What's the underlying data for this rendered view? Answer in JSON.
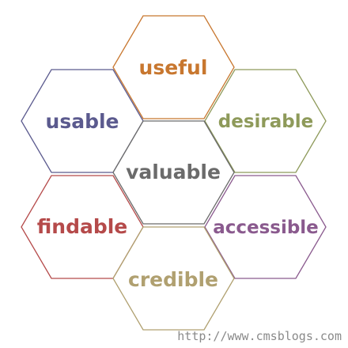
{
  "diagram": {
    "hexagons": [
      {
        "id": "useful",
        "label": "useful",
        "color": "#c8772f"
      },
      {
        "id": "usable",
        "label": "usable",
        "color": "#5b5a8e"
      },
      {
        "id": "desirable",
        "label": "desirable",
        "color": "#8e9a5a"
      },
      {
        "id": "valuable",
        "label": "valuable",
        "color": "#6b6b6b"
      },
      {
        "id": "findable",
        "label": "findable",
        "color": "#b54a4a"
      },
      {
        "id": "accessible",
        "label": "accessible",
        "color": "#8a5a8e"
      },
      {
        "id": "credible",
        "label": "credible",
        "color": "#b0a070"
      }
    ],
    "watermark": "http://www.cmsblogs.com"
  }
}
